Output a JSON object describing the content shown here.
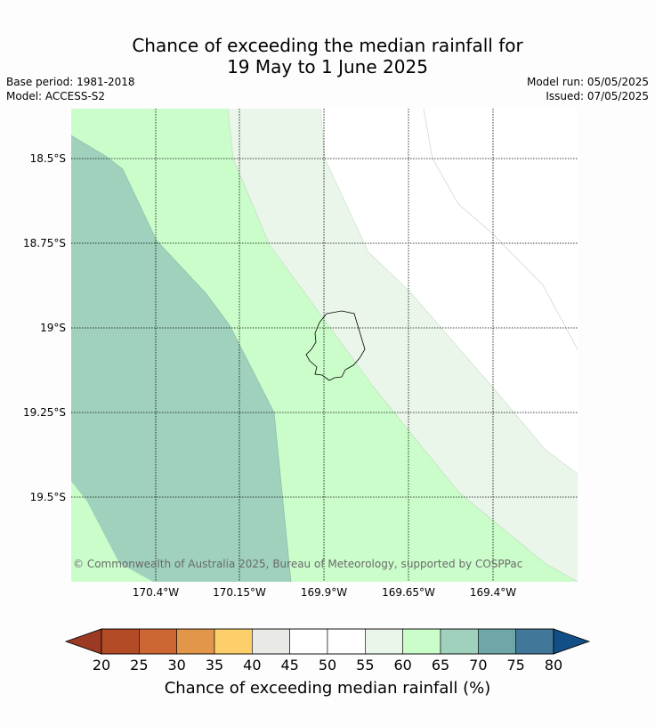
{
  "header": {
    "title_line1": "Chance of exceeding the median rainfall for",
    "title_line2": "19 May to 1 June 2025",
    "base_period": "Base period: 1981-2018",
    "model": "Model: ACCESS-S2",
    "model_run": "Model run: 05/05/2025",
    "issued": "Issued: 07/05/2025"
  },
  "map": {
    "lat_labels": [
      "18.5°S",
      "18.75°S",
      "19°S",
      "19.25°S",
      "19.5°S"
    ],
    "lon_labels": [
      "170.4°W",
      "170.15°W",
      "169.9°W",
      "169.65°W",
      "169.4°W"
    ],
    "copyright": "© Commonwealth of Australia 2025, Bureau of Meteorology, supported by COSPPac",
    "island": "Niue",
    "fill_colors": {
      "band_65_70": "#9fd1bc",
      "band_60_65": "#cbfdcb",
      "band_55_60": "#eaf6ea",
      "band_50_55": "#ffffff"
    }
  },
  "colorbar": {
    "ticks": [
      "20",
      "25",
      "30",
      "35",
      "40",
      "45",
      "50",
      "55",
      "60",
      "65",
      "70",
      "75",
      "80"
    ],
    "label": "Chance of exceeding median rainfall (%)",
    "under_color": "#9b3923",
    "over_color": "#124f86",
    "segment_colors": [
      "#b34b26",
      "#cc6633",
      "#e29649",
      "#fdcf6a",
      "#e9e9e5",
      "#ffffff",
      "#ffffff",
      "#eaf6ea",
      "#cbfdcb",
      "#9fd1bc",
      "#6fa6a8",
      "#41789a"
    ]
  }
}
